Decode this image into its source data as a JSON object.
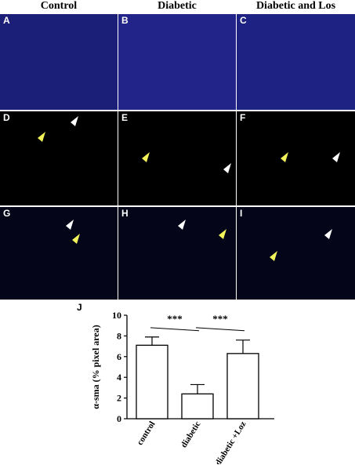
{
  "headers": [
    "Control",
    "Diabetic",
    "Diabetic and Los"
  ],
  "panels": [
    {
      "label": "A",
      "bg": "#1c1f78",
      "style": "tissue",
      "box": true
    },
    {
      "label": "B",
      "bg": "#22248a",
      "style": "tissue",
      "box": true
    },
    {
      "label": "C",
      "bg": "#1e2282",
      "style": "tissue",
      "box": true
    },
    {
      "label": "D",
      "bg": "#000000",
      "style": "zoom",
      "arrows": true
    },
    {
      "label": "E",
      "bg": "#000000",
      "style": "zoom",
      "arrows": true
    },
    {
      "label": "F",
      "bg": "#000000",
      "style": "zoom",
      "arrows": true
    },
    {
      "label": "G",
      "bg": "#05051a",
      "style": "cells",
      "arrows": true
    },
    {
      "label": "H",
      "bg": "#05051a",
      "style": "cells",
      "arrows": true
    },
    {
      "label": "I",
      "bg": "#05051a",
      "style": "cells",
      "arrows": true
    }
  ],
  "colors": {
    "nuclei": "#2b3bff",
    "vessel": "#ff1a3a",
    "arrow_white": "#ffffff",
    "arrow_yellow": "#f2f25a",
    "box": "#ffffff"
  },
  "chart_label": "J",
  "significance": [
    "***",
    "***"
  ],
  "chart_data": {
    "type": "bar",
    "categories": [
      "control",
      "diabetic",
      "diabetic +Loz"
    ],
    "values": [
      7.1,
      2.4,
      6.3
    ],
    "errors": [
      0.8,
      0.9,
      1.3
    ],
    "ylabel": "α-sma (% pixel area)",
    "ylim": [
      0,
      10
    ],
    "yticks": [
      0,
      2,
      4,
      6,
      8,
      10
    ],
    "grid": false,
    "bar_fill": "#ffffff",
    "bar_stroke": "#000000"
  }
}
